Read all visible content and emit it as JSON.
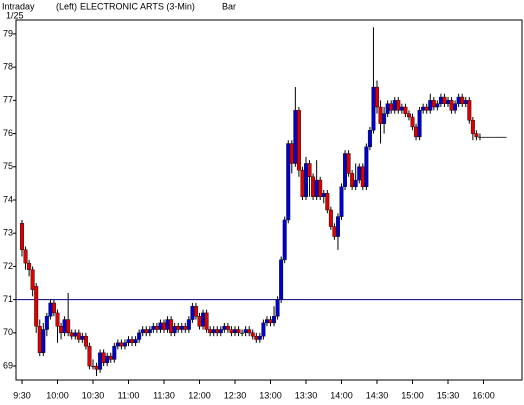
{
  "chart_data": {
    "type": "candlestick",
    "period": "Intraday",
    "date": "1/25",
    "side": "(Left)",
    "title": "ELECTRONIC ARTS (3-Min)",
    "style": "Bar",
    "up_color": "#0000cc",
    "down_color": "#dd0000",
    "reference_line": 71,
    "reference_color": "#000080",
    "ylim": [
      68.58,
      79.42
    ],
    "yticks": [
      69,
      70,
      71,
      72,
      73,
      74,
      75,
      76,
      77,
      78,
      79
    ],
    "xticks": [
      "9:30",
      "10:00",
      "10:30",
      "11:00",
      "11:30",
      "12:00",
      "12:30",
      "13:00",
      "13:30",
      "14:00",
      "14:30",
      "15:00",
      "15:30",
      "16:00"
    ],
    "x": [
      "9:30",
      "9:33",
      "9:36",
      "9:39",
      "9:42",
      "9:45",
      "9:48",
      "9:51",
      "9:54",
      "9:57",
      "10:00",
      "10:03",
      "10:06",
      "10:09",
      "10:12",
      "10:15",
      "10:18",
      "10:21",
      "10:24",
      "10:27",
      "10:30",
      "10:33",
      "10:36",
      "10:39",
      "10:42",
      "10:45",
      "10:48",
      "10:51",
      "10:54",
      "10:57",
      "11:00",
      "11:03",
      "11:06",
      "11:09",
      "11:12",
      "11:15",
      "11:18",
      "11:21",
      "11:24",
      "11:27",
      "11:30",
      "11:33",
      "11:36",
      "11:39",
      "11:42",
      "11:45",
      "11:48",
      "11:51",
      "11:54",
      "11:57",
      "12:00",
      "12:03",
      "12:06",
      "12:09",
      "12:12",
      "12:15",
      "12:18",
      "12:21",
      "12:24",
      "12:27",
      "12:30",
      "12:33",
      "12:36",
      "12:39",
      "12:42",
      "12:45",
      "12:48",
      "12:51",
      "12:54",
      "12:57",
      "13:00",
      "13:03",
      "13:06",
      "13:09",
      "13:12",
      "13:15",
      "13:18",
      "13:21",
      "13:24",
      "13:27",
      "13:30",
      "13:33",
      "13:36",
      "13:39",
      "13:42",
      "13:45",
      "13:48",
      "13:51",
      "13:54",
      "13:57",
      "14:00",
      "14:03",
      "14:06",
      "14:09",
      "14:12",
      "14:15",
      "14:18",
      "14:21",
      "14:24",
      "14:27",
      "14:30",
      "14:33",
      "14:36",
      "14:39",
      "14:42",
      "14:45",
      "14:48",
      "14:51",
      "14:54",
      "14:57",
      "15:00",
      "15:03",
      "15:06",
      "15:09",
      "15:12",
      "15:15",
      "15:18",
      "15:21",
      "15:24",
      "15:27",
      "15:30",
      "15:33",
      "15:36",
      "15:39",
      "15:42",
      "15:45",
      "15:48",
      "15:51",
      "15:54",
      "15:57",
      "16:00",
      "16:03",
      "16:06",
      "16:09",
      "16:12",
      "16:15",
      "16:18"
    ],
    "open": [
      73.3,
      72.5,
      72.1,
      71.9,
      71.4,
      70.2,
      69.4,
      70.1,
      70.5,
      70.9,
      70.6,
      70.2,
      70.0,
      70.4,
      70.0,
      69.9,
      70.0,
      69.8,
      69.9,
      69.6,
      69.0,
      69.0,
      68.9,
      69.4,
      69.1,
      69.3,
      69.2,
      69.6,
      69.7,
      69.6,
      69.7,
      69.8,
      69.7,
      69.8,
      70.0,
      70.1,
      70.0,
      70.1,
      70.2,
      70.1,
      70.3,
      70.1,
      70.4,
      70.0,
      70.2,
      70.1,
      70.2,
      70.1,
      70.4,
      70.8,
      70.5,
      70.2,
      70.6,
      70.1,
      70.0,
      70.1,
      70.0,
      70.1,
      70.2,
      70.1,
      70.0,
      70.1,
      70.0,
      70.0,
      70.1,
      70.0,
      69.9,
      69.8,
      69.9,
      70.3,
      70.4,
      70.3,
      70.5,
      71.0,
      72.2,
      73.4,
      75.7,
      75.1,
      76.7,
      74.9,
      74.1,
      75.1,
      74.7,
      74.1,
      74.6,
      74.1,
      74.2,
      73.7,
      73.2,
      72.9,
      73.5,
      74.4,
      75.4,
      74.8,
      74.4,
      74.6,
      75.0,
      74.4,
      75.6,
      76.1,
      77.4,
      76.8,
      76.3,
      76.6,
      76.9,
      76.7,
      77.0,
      76.7,
      76.8,
      76.6,
      76.5,
      76.2,
      75.9,
      76.7,
      76.8,
      76.7,
      77.0,
      76.8,
      76.9,
      77.1,
      76.9,
      77.0,
      76.7,
      76.9,
      77.1,
      76.9,
      77.0,
      76.4,
      76.0,
      75.9,
      75.9,
      75.9,
      75.9,
      75.9,
      75.9,
      75.9,
      75.9
    ],
    "high": [
      73.4,
      72.6,
      72.2,
      72.0,
      71.5,
      70.4,
      70.3,
      70.6,
      71.0,
      71.0,
      70.7,
      70.3,
      70.5,
      71.2,
      70.1,
      70.1,
      70.1,
      70.0,
      70.0,
      69.7,
      69.2,
      69.1,
      69.5,
      69.5,
      69.4,
      69.4,
      69.7,
      69.8,
      69.8,
      69.8,
      69.9,
      69.9,
      69.9,
      70.1,
      70.2,
      70.2,
      70.2,
      70.3,
      70.3,
      70.4,
      70.4,
      70.5,
      70.5,
      70.3,
      70.3,
      70.3,
      70.3,
      70.5,
      70.9,
      70.9,
      70.6,
      70.7,
      70.7,
      70.2,
      70.2,
      70.2,
      70.2,
      70.3,
      70.3,
      70.2,
      70.2,
      70.2,
      70.1,
      70.2,
      70.2,
      70.1,
      70.0,
      70.0,
      70.4,
      70.5,
      70.5,
      70.8,
      71.1,
      72.3,
      73.5,
      75.8,
      75.8,
      77.4,
      76.8,
      75.0,
      75.3,
      75.2,
      74.8,
      75.2,
      74.7,
      74.3,
      74.3,
      73.8,
      73.3,
      73.6,
      74.5,
      75.5,
      75.5,
      74.9,
      75.1,
      75.1,
      75.1,
      75.7,
      76.2,
      79.2,
      77.6,
      77.0,
      76.8,
      77.0,
      77.0,
      77.1,
      77.1,
      76.9,
      76.9,
      76.7,
      76.6,
      76.3,
      76.8,
      76.9,
      76.9,
      77.2,
      77.1,
      77.0,
      77.2,
      77.2,
      77.1,
      77.1,
      77.0,
      77.2,
      77.2,
      77.1,
      77.1,
      76.5,
      76.1,
      76.0,
      75.9,
      75.9,
      75.9,
      75.9,
      75.9,
      75.9,
      75.9
    ],
    "low": [
      72.3,
      71.9,
      71.7,
      71.1,
      70.0,
      69.3,
      69.3,
      69.9,
      70.4,
      70.5,
      69.7,
      69.8,
      69.9,
      69.9,
      69.8,
      69.8,
      69.7,
      69.7,
      69.5,
      68.9,
      68.9,
      68.7,
      68.8,
      69.0,
      69.0,
      69.1,
      69.1,
      69.5,
      69.5,
      69.5,
      69.6,
      69.6,
      69.6,
      69.7,
      69.9,
      69.9,
      69.9,
      70.0,
      70.0,
      70.0,
      70.0,
      70.0,
      69.9,
      69.9,
      70.0,
      70.0,
      70.0,
      70.0,
      70.3,
      70.4,
      70.1,
      70.1,
      70.0,
      69.9,
      69.9,
      69.9,
      69.9,
      70.0,
      70.0,
      69.9,
      69.9,
      69.9,
      69.9,
      69.9,
      69.9,
      69.8,
      69.7,
      69.7,
      69.8,
      70.2,
      70.2,
      70.2,
      70.4,
      70.9,
      72.1,
      73.3,
      74.8,
      75.0,
      74.7,
      74.0,
      74.0,
      74.1,
      74.0,
      74.0,
      74.0,
      73.9,
      73.6,
      73.1,
      72.8,
      72.5,
      73.4,
      74.3,
      74.7,
      74.3,
      74.3,
      74.5,
      74.3,
      74.3,
      75.5,
      76.0,
      76.6,
      75.7,
      76.0,
      76.5,
      76.6,
      76.6,
      76.6,
      76.6,
      76.5,
      76.4,
      76.1,
      75.8,
      75.8,
      76.6,
      76.6,
      76.6,
      76.7,
      76.7,
      76.8,
      76.8,
      76.8,
      76.6,
      76.6,
      76.8,
      76.8,
      76.8,
      76.3,
      75.8,
      75.8,
      75.8,
      75.9,
      75.9,
      75.9,
      75.9,
      75.9,
      75.9,
      75.9
    ],
    "close": [
      72.5,
      72.1,
      71.9,
      71.3,
      70.2,
      69.4,
      70.1,
      70.5,
      70.9,
      70.6,
      70.2,
      70.0,
      70.4,
      70.0,
      69.9,
      70.0,
      69.8,
      69.9,
      69.6,
      69.0,
      69.0,
      68.9,
      69.4,
      69.1,
      69.3,
      69.2,
      69.6,
      69.7,
      69.6,
      69.7,
      69.8,
      69.7,
      69.8,
      70.0,
      70.1,
      70.0,
      70.1,
      70.2,
      70.1,
      70.3,
      70.1,
      70.4,
      70.0,
      70.2,
      70.1,
      70.2,
      70.1,
      70.4,
      70.8,
      70.5,
      70.2,
      70.6,
      70.1,
      70.0,
      70.1,
      70.0,
      70.1,
      70.2,
      70.1,
      70.0,
      70.1,
      70.0,
      70.0,
      70.1,
      70.0,
      69.9,
      69.8,
      69.9,
      70.3,
      70.4,
      70.3,
      70.5,
      71.0,
      72.2,
      73.4,
      75.7,
      75.1,
      76.7,
      74.9,
      74.1,
      75.1,
      74.7,
      74.1,
      74.6,
      74.1,
      74.2,
      73.7,
      73.2,
      72.9,
      73.5,
      74.4,
      75.4,
      74.8,
      74.4,
      74.6,
      75.0,
      74.4,
      75.6,
      76.1,
      77.4,
      76.8,
      76.3,
      76.6,
      76.9,
      76.7,
      77.0,
      76.7,
      76.8,
      76.6,
      76.5,
      76.2,
      75.9,
      76.7,
      76.8,
      76.7,
      77.0,
      76.8,
      76.9,
      77.1,
      76.9,
      77.0,
      76.7,
      76.9,
      77.1,
      76.9,
      77.0,
      76.4,
      76.0,
      75.9,
      75.9,
      75.9,
      75.9,
      75.9,
      75.9,
      75.9,
      75.9,
      75.9
    ]
  }
}
